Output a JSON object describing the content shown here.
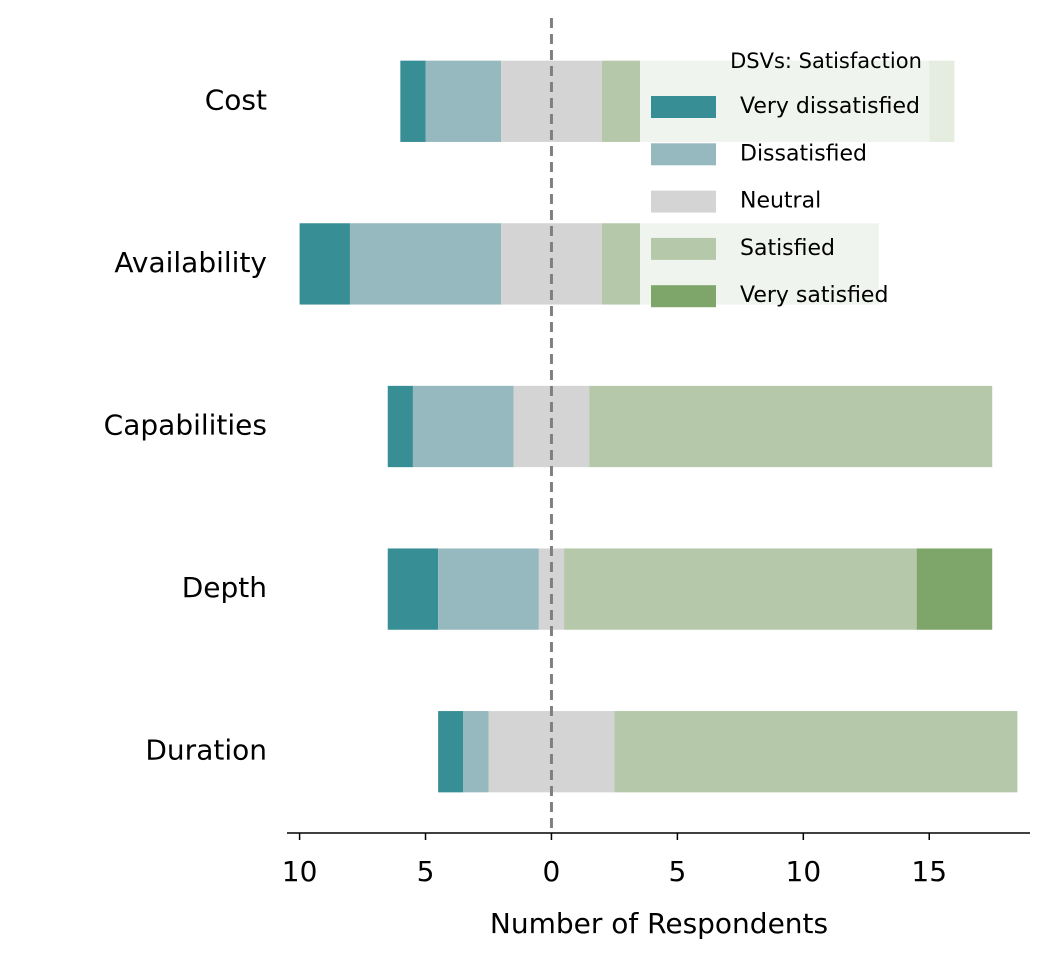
{
  "chart_data": {
    "type": "bar",
    "orientation": "horizontal",
    "diverging": true,
    "categories": [
      "Cost",
      "Availability",
      "Capabilities",
      "Depth",
      "Duration"
    ],
    "series": [
      {
        "name": "Very dissatisfied",
        "color": "#388e95",
        "values": [
          1,
          2,
          1,
          2,
          1
        ]
      },
      {
        "name": "Dissatisfied",
        "color": "#96b9c0",
        "values": [
          3,
          6,
          4,
          4,
          1
        ]
      },
      {
        "name": "Neutral",
        "color": "#d4d4d4",
        "values": [
          4,
          4,
          3,
          1,
          5
        ]
      },
      {
        "name": "Satisfied",
        "color": "#b5c9aa",
        "values": [
          13,
          11,
          16,
          14,
          16
        ]
      },
      {
        "name": "Very satisfied",
        "color": "#7ea66b",
        "values": [
          1,
          0,
          0,
          3,
          0
        ]
      }
    ],
    "xlabel": "Number of Respondents",
    "xlim": [
      -10.5,
      19
    ],
    "xticks": [
      {
        "value": -10,
        "label": "10"
      },
      {
        "value": -5,
        "label": "5"
      },
      0,
      5,
      10,
      15
    ],
    "legend": {
      "title": "DSVs: Satisfaction",
      "position": "upper right"
    }
  }
}
